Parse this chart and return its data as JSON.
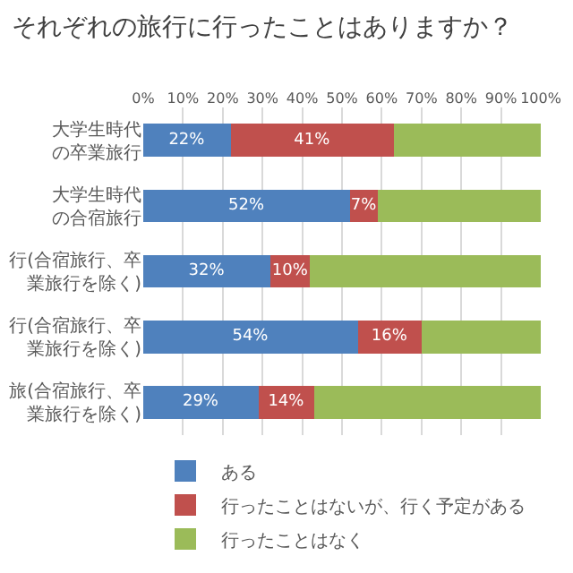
{
  "chart_data": {
    "type": "bar",
    "orientation": "horizontal",
    "stacked": true,
    "title": "それぞれの旅行に行ったことはありますか？",
    "categories": [
      "大学生時代の卒業旅行",
      "大学生時代の合宿旅行",
      "行(合宿旅行、卒業旅行を除く)",
      "行(合宿旅行、卒業旅行を除く)",
      "旅(合宿旅行、卒業旅行を除く)"
    ],
    "series": [
      {
        "name": "ある",
        "color": "#4f81bd",
        "values": [
          22,
          52,
          32,
          54,
          29
        ],
        "value_labels": [
          "22%",
          "52%",
          "32%",
          "54%",
          "29%"
        ]
      },
      {
        "name": "行ったことはないが、行く予定がある",
        "color": "#c0504d",
        "values": [
          41,
          7,
          10,
          16,
          14
        ],
        "value_labels": [
          "41%",
          "7%",
          "10%",
          "16%",
          "14%"
        ]
      },
      {
        "name": "行ったことはなく",
        "color": "#9bbb59",
        "values": [
          37,
          41,
          58,
          30,
          57
        ],
        "value_labels": [
          null,
          null,
          null,
          null,
          null
        ]
      }
    ],
    "xlim": [
      0,
      100
    ],
    "xticks": [
      {
        "value": 0,
        "label": "0%"
      },
      {
        "value": 10,
        "label": "10%"
      },
      {
        "value": 20,
        "label": "20%"
      },
      {
        "value": 30,
        "label": "30%"
      },
      {
        "value": 40,
        "label": "40%"
      },
      {
        "value": 50,
        "label": "50%"
      },
      {
        "value": 60,
        "label": "60%"
      },
      {
        "value": 70,
        "label": "70%"
      },
      {
        "value": 80,
        "label": "80%"
      },
      {
        "value": 90,
        "label": "90%"
      },
      {
        "value": 100,
        "label": "100%"
      }
    ],
    "grid": "x",
    "legend": "bottom"
  }
}
